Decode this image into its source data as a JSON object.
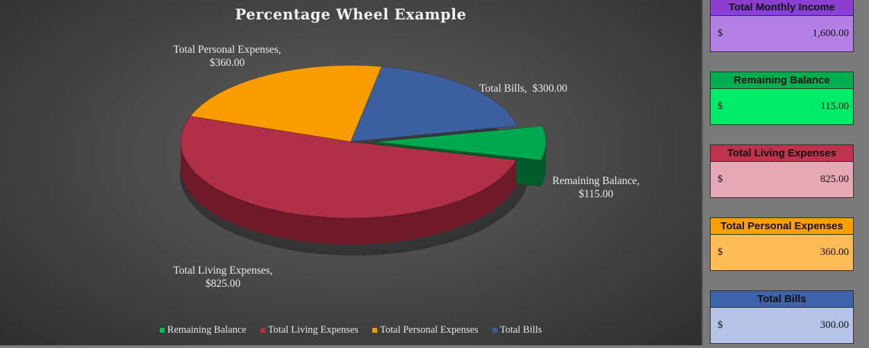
{
  "chart_data": {
    "type": "pie",
    "title": "Percentage Wheel Example",
    "slices": [
      {
        "name": "Remaining Balance",
        "value": 115.0,
        "label_name": "Remaining Balance,",
        "label_value": "$115.00",
        "color": "#00a850",
        "side_color": "#005a2a",
        "exploded": true
      },
      {
        "name": "Total Living Expenses",
        "value": 825.0,
        "label_name": "Total Living Expenses,",
        "label_value": "$825.00",
        "color": "#b03048",
        "side_color": "#6e1a28",
        "exploded": false
      },
      {
        "name": "Total Personal Expenses",
        "value": 360.0,
        "label_name": "Total Personal Expenses,",
        "label_value": "$360.00",
        "color": "#f99c00",
        "side_color": "#a86400",
        "exploded": false
      },
      {
        "name": "Total Bills",
        "value": 300.0,
        "label_name": "Total Bills,",
        "label_value": "$300.00",
        "color": "#3c5fa0",
        "side_color": "#233a66",
        "exploded": false
      }
    ],
    "legend_position": "bottom"
  },
  "legend": {
    "items": [
      {
        "label": "Remaining Balance",
        "color": "#00c15a"
      },
      {
        "label": "Total Living Expenses",
        "color": "#b03048"
      },
      {
        "label": "Total Personal Expenses",
        "color": "#f99c00"
      },
      {
        "label": "Total Bills",
        "color": "#3c5fa0"
      }
    ]
  },
  "summary": {
    "cards": [
      {
        "title": "Total Monthly Income",
        "currency": "$",
        "amount": "1,600.00",
        "header_color": "#8a3fd1",
        "body_color": "#b580e6"
      },
      {
        "title": "Remaining Balance",
        "currency": "$",
        "amount": "115.00",
        "header_color": "#00b050",
        "body_color": "#00ea6a"
      },
      {
        "title": "Total Living Expenses",
        "currency": "$",
        "amount": "825.00",
        "header_color": "#c0334c",
        "body_color": "#e6a8b4"
      },
      {
        "title": "Total Personal Expenses",
        "currency": "$",
        "amount": "360.00",
        "header_color": "#f9a000",
        "body_color": "#ffbb55"
      },
      {
        "title": "Total Bills",
        "currency": "$",
        "amount": "300.00",
        "header_color": "#4062a8",
        "body_color": "#b4c3e6"
      }
    ]
  }
}
